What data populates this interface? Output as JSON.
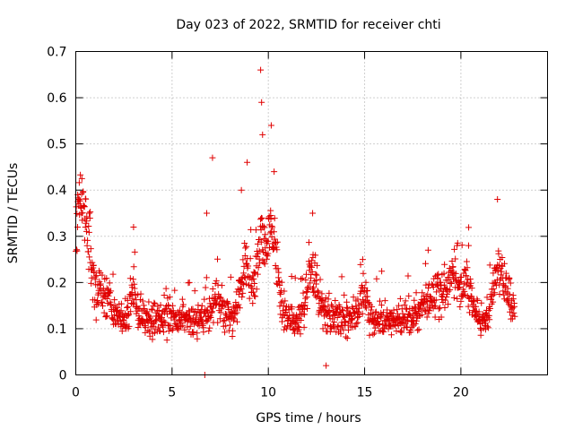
{
  "chart_data": {
    "type": "scatter",
    "title": "Day 023 of 2022, SRMTID for receiver chti",
    "xlabel": "GPS time / hours",
    "ylabel": "SRMTID / TECUs",
    "xlim": [
      0,
      24.5
    ],
    "ylim": [
      0,
      0.7
    ],
    "xticks": [
      0,
      5,
      10,
      15,
      20
    ],
    "xtick_labels": [
      "0",
      "5",
      "10",
      "15",
      "20"
    ],
    "yticks": [
      0,
      0.1,
      0.2,
      0.3,
      0.4,
      0.5,
      0.6,
      0.7
    ],
    "ytick_labels": [
      "0",
      "0.1",
      "0.2",
      "0.3",
      "0.4",
      "0.5",
      "0.6",
      "0.7"
    ],
    "grid": true,
    "marker": "plus",
    "color": "#e00000",
    "x_range_of_data": [
      0,
      22.8
    ],
    "baseline_level": 0.12,
    "events": [
      {
        "x": 0.1,
        "y": 0.39
      },
      {
        "x": 0.3,
        "y": 0.35
      },
      {
        "x": 0.5,
        "y": 0.32
      },
      {
        "x": 0.7,
        "y": 0.35
      },
      {
        "x": 3.0,
        "y": 0.32
      },
      {
        "x": 5.9,
        "y": 0.2
      },
      {
        "x": 6.7,
        "y": 0.0
      },
      {
        "x": 6.8,
        "y": 0.35
      },
      {
        "x": 7.1,
        "y": 0.47
      },
      {
        "x": 8.6,
        "y": 0.4
      },
      {
        "x": 8.9,
        "y": 0.46
      },
      {
        "x": 9.6,
        "y": 0.66
      },
      {
        "x": 9.65,
        "y": 0.59
      },
      {
        "x": 9.7,
        "y": 0.52
      },
      {
        "x": 10.15,
        "y": 0.54
      },
      {
        "x": 10.3,
        "y": 0.44
      },
      {
        "x": 12.3,
        "y": 0.35
      },
      {
        "x": 13.0,
        "y": 0.02
      },
      {
        "x": 14.9,
        "y": 0.25
      },
      {
        "x": 18.3,
        "y": 0.27
      },
      {
        "x": 19.8,
        "y": 0.28
      },
      {
        "x": 20.4,
        "y": 0.28
      },
      {
        "x": 21.9,
        "y": 0.38
      },
      {
        "x": 22.5,
        "y": 0.21
      }
    ]
  }
}
